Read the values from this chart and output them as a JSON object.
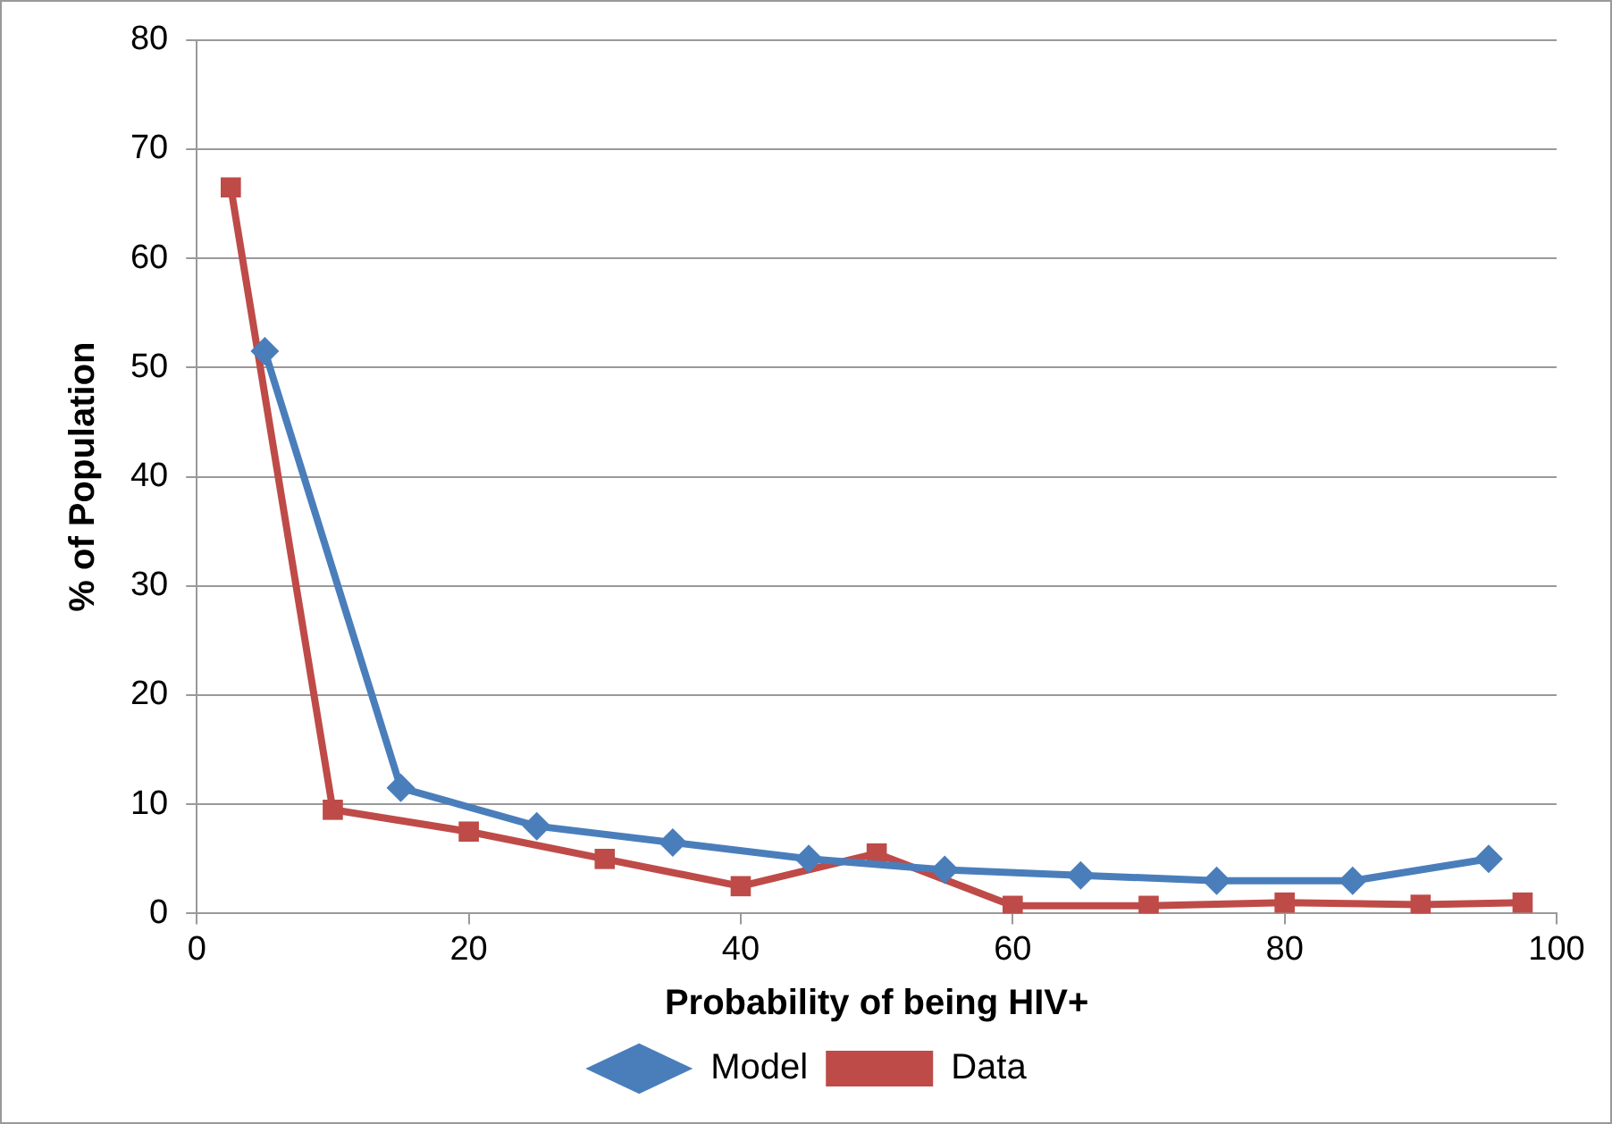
{
  "chart_data": {
    "type": "line",
    "xlabel": "Probability of being HIV+",
    "ylabel": "% of Population",
    "xlim": [
      0,
      100
    ],
    "xticks": [
      0,
      20,
      40,
      60,
      80,
      100
    ],
    "ylim": [
      0,
      80
    ],
    "yticks": [
      0,
      10,
      20,
      30,
      40,
      50,
      60,
      70,
      80
    ],
    "grid": "y",
    "legend": "bottom",
    "series": [
      {
        "name": "Model",
        "color": "#4a7ebb",
        "marker": "diamond",
        "x": [
          5,
          15,
          25,
          35,
          45,
          55,
          65,
          75,
          85,
          95
        ],
        "values": [
          51.5,
          11.5,
          8,
          6.5,
          5,
          4,
          3.5,
          3,
          3,
          5
        ]
      },
      {
        "name": "Data",
        "color": "#be4b48",
        "marker": "square",
        "x": [
          2.5,
          10,
          20,
          30,
          40,
          50,
          60,
          70,
          80,
          90,
          97.5
        ],
        "values": [
          66.5,
          9.5,
          7.5,
          5,
          2.5,
          5.5,
          0.7,
          0.7,
          1,
          0.8,
          1
        ]
      }
    ]
  }
}
